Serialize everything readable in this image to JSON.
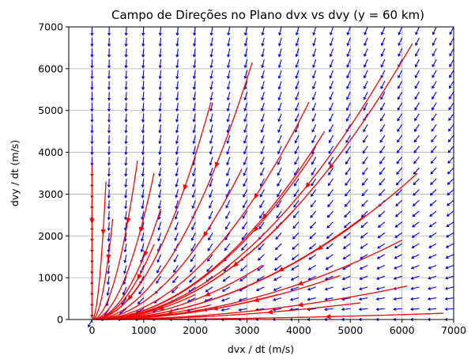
{
  "chart_data": {
    "type": "quiver",
    "title": "Campo de Direções no Plano dvx vs dvy (y = 60 km)",
    "xlabel": "dvx / dt (m/s)",
    "ylabel": "dvy / dt (m/s)",
    "xlim": [
      -450,
      7000
    ],
    "ylim": [
      0,
      7000
    ],
    "x_ticks": [
      0,
      1000,
      2000,
      3000,
      4000,
      5000,
      6000,
      7000
    ],
    "y_ticks": [
      0,
      1000,
      2000,
      3000,
      4000,
      5000,
      6000,
      7000
    ],
    "x_tick_labels": [
      "0",
      "1000",
      "2000",
      "3000",
      "4000",
      "5000",
      "6000",
      "7000"
    ],
    "y_tick_labels": [
      "0",
      "1000",
      "2000",
      "3000",
      "4000",
      "5000",
      "6000",
      "7000"
    ],
    "grid": true,
    "arrow_field": {
      "color": "#0000ff",
      "x_start": 0,
      "x_end": 7000,
      "x_count": 22,
      "y_start": 0,
      "y_end": 7000,
      "y_count": 28
    },
    "streamline_color": "#ff0000",
    "streamline_seeds": [
      [
        0,
        3700
      ],
      [
        270,
        3300
      ],
      [
        880,
        3800
      ],
      [
        1200,
        3500
      ],
      [
        1330,
        2650
      ],
      [
        2300,
        5200
      ],
      [
        3100,
        6150
      ],
      [
        4200,
        5200
      ],
      [
        4500,
        4500
      ],
      [
        5600,
        5800
      ],
      [
        6200,
        6600
      ],
      [
        6300,
        3500
      ],
      [
        400,
        2400
      ],
      [
        1000,
        1000
      ],
      [
        1200,
        1800
      ],
      [
        2000,
        600
      ],
      [
        2900,
        3600
      ],
      [
        3300,
        1300
      ],
      [
        3900,
        2600
      ],
      [
        4300,
        4000
      ],
      [
        2300,
        350
      ],
      [
        3600,
        600
      ],
      [
        4800,
        1050
      ],
      [
        5300,
        2500
      ],
      [
        6000,
        1900
      ],
      [
        5200,
        400
      ],
      [
        6100,
        800
      ],
      [
        6800,
        150
      ]
    ]
  }
}
